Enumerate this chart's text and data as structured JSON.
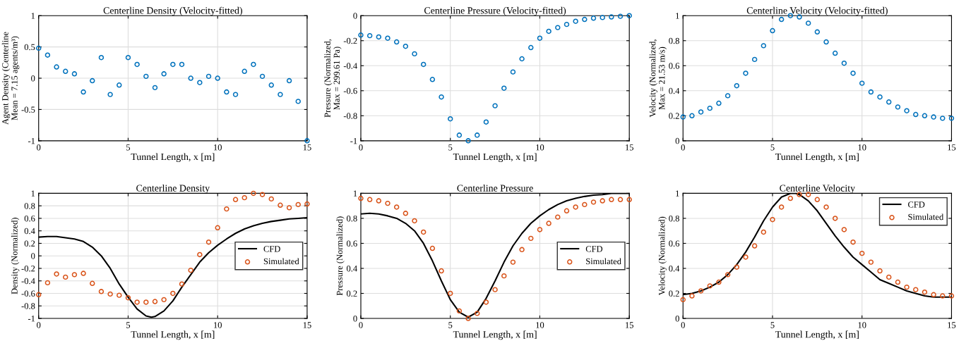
{
  "chart_data": [
    {
      "type": "scatter",
      "title": "Centerline Density (Velocity-fitted)",
      "xlabel": "Tunnel Length, x [m]",
      "ylabel": "Agent Density (Centerline Mean = 7.15 agents/m³)",
      "x": [
        0,
        0.5,
        1,
        1.5,
        2,
        2.5,
        3,
        3.5,
        4,
        4.5,
        5,
        5.5,
        6,
        6.5,
        7,
        7.5,
        8,
        8.5,
        9,
        9.5,
        10,
        10.5,
        11,
        11.5,
        12,
        12.5,
        13,
        13.5,
        14,
        14.5,
        15
      ],
      "series": [
        {
          "color": "#0072bd",
          "values": [
            0.48,
            0.37,
            0.18,
            0.11,
            0.07,
            -0.22,
            -0.04,
            0.33,
            -0.26,
            -0.11,
            0.33,
            0.22,
            0.03,
            -0.15,
            0.07,
            0.22,
            0.22,
            0.0,
            -0.07,
            0.03,
            0.0,
            -0.22,
            -0.26,
            0.11,
            0.22,
            0.03,
            -0.11,
            -0.26,
            -0.04,
            -0.37,
            -1.0
          ]
        }
      ],
      "xlim": [
        0,
        15
      ],
      "xticks": [
        0,
        5,
        10,
        15
      ],
      "ylim": [
        -1,
        1
      ],
      "yticks": [
        -1,
        -0.5,
        0,
        0.5,
        1
      ],
      "grid": true,
      "marker": "circle"
    },
    {
      "type": "scatter",
      "title": "Centerline Pressure (Velocity-fitted)",
      "xlabel": "Tunnel Length, x [m]",
      "ylabel": "Pressure (Normalized, Max = 299.61 Pa)",
      "x": [
        0,
        0.5,
        1,
        1.5,
        2,
        2.5,
        3,
        3.5,
        4,
        4.5,
        5,
        5.5,
        6,
        6.5,
        7,
        7.5,
        8,
        8.5,
        9,
        9.5,
        10,
        10.5,
        11,
        11.5,
        12,
        12.5,
        13,
        13.5,
        14,
        14.5,
        15
      ],
      "series": [
        {
          "color": "#0072bd",
          "values": [
            -0.155,
            -0.16,
            -0.17,
            -0.18,
            -0.21,
            -0.245,
            -0.305,
            -0.39,
            -0.51,
            -0.65,
            -0.825,
            -0.955,
            -1.0,
            -0.955,
            -0.85,
            -0.72,
            -0.58,
            -0.45,
            -0.345,
            -0.255,
            -0.18,
            -0.125,
            -0.095,
            -0.07,
            -0.045,
            -0.03,
            -0.02,
            -0.015,
            -0.01,
            -0.005,
            0.0
          ]
        }
      ],
      "xlim": [
        0,
        15
      ],
      "xticks": [
        0,
        5,
        10,
        15
      ],
      "ylim": [
        -1,
        0
      ],
      "yticks": [
        -1,
        -0.8,
        -0.6,
        -0.4,
        -0.2,
        0
      ],
      "grid": true,
      "marker": "circle"
    },
    {
      "type": "scatter",
      "title": "Centerline Velocity (Velocity-fitted)",
      "xlabel": "Tunnel Length, x [m]",
      "ylabel": "Velocity (Normalized, Max = 21.53 m/s)",
      "x": [
        0,
        0.5,
        1,
        1.5,
        2,
        2.5,
        3,
        3.5,
        4,
        4.5,
        5,
        5.5,
        6,
        6.5,
        7,
        7.5,
        8,
        8.5,
        9,
        9.5,
        10,
        10.5,
        11,
        11.5,
        12,
        12.5,
        13,
        13.5,
        14,
        14.5,
        15
      ],
      "series": [
        {
          "color": "#0072bd",
          "values": [
            0.19,
            0.2,
            0.23,
            0.26,
            0.3,
            0.36,
            0.44,
            0.54,
            0.65,
            0.76,
            0.88,
            0.97,
            1.0,
            0.99,
            0.94,
            0.87,
            0.79,
            0.7,
            0.62,
            0.54,
            0.46,
            0.39,
            0.35,
            0.31,
            0.27,
            0.24,
            0.21,
            0.2,
            0.19,
            0.18,
            0.18
          ]
        }
      ],
      "xlim": [
        0,
        15
      ],
      "xticks": [
        0,
        5,
        10,
        15
      ],
      "ylim": [
        0,
        1
      ],
      "yticks": [
        0,
        0.2,
        0.4,
        0.6,
        0.8,
        1
      ],
      "grid": true,
      "marker": "circle"
    },
    {
      "type": "scatter",
      "title": "Centerline Density",
      "xlabel": "Tunnel Length, x [m]",
      "ylabel": "Density (Normalized)",
      "x": [
        0,
        0.5,
        1,
        1.5,
        2,
        2.5,
        3,
        3.5,
        4,
        4.5,
        5,
        5.5,
        6,
        6.5,
        7,
        7.5,
        8,
        8.5,
        9,
        9.5,
        10,
        10.5,
        11,
        11.5,
        12,
        12.5,
        13,
        13.5,
        14,
        14.5,
        15
      ],
      "series": [
        {
          "name": "CFD",
          "type": "line",
          "marker": "none",
          "color": "#000000",
          "x": [
            0,
            0.5,
            1,
            1.5,
            2,
            2.5,
            3,
            3.5,
            4,
            4.5,
            5,
            5.5,
            6,
            6.3,
            6.5,
            7,
            7.5,
            8,
            8.5,
            9,
            9.5,
            10,
            10.5,
            11,
            11.5,
            12,
            12.5,
            13,
            13.5,
            14,
            14.5,
            15
          ],
          "values": [
            0.3,
            0.31,
            0.31,
            0.29,
            0.27,
            0.23,
            0.14,
            0.0,
            -0.2,
            -0.45,
            -0.66,
            -0.85,
            -0.96,
            -0.98,
            -0.97,
            -0.88,
            -0.72,
            -0.5,
            -0.3,
            -0.1,
            0.05,
            0.17,
            0.27,
            0.36,
            0.43,
            0.48,
            0.52,
            0.55,
            0.57,
            0.59,
            0.6,
            0.61
          ]
        },
        {
          "name": "Simulated",
          "color": "#d95319",
          "values": [
            -0.62,
            -0.43,
            -0.29,
            -0.34,
            -0.3,
            -0.28,
            -0.44,
            -0.57,
            -0.61,
            -0.63,
            -0.67,
            -0.74,
            -0.74,
            -0.73,
            -0.7,
            -0.6,
            -0.45,
            -0.23,
            0.02,
            0.22,
            0.45,
            0.75,
            0.9,
            0.93,
            1.0,
            0.98,
            0.91,
            0.81,
            0.77,
            0.82,
            0.83
          ]
        }
      ],
      "xlim": [
        0,
        15
      ],
      "xticks": [
        0,
        5,
        10,
        15
      ],
      "ylim": [
        -1,
        1
      ],
      "yticks": [
        -1,
        -0.8,
        -0.6,
        -0.4,
        -0.2,
        0,
        0.2,
        0.4,
        0.6,
        0.8,
        1
      ],
      "grid": true,
      "marker": "circle",
      "legend": "center right"
    },
    {
      "type": "scatter",
      "title": "Centerline Pressure",
      "xlabel": "Tunnel Length, x [m]",
      "ylabel": "Pressure (Normalized)",
      "x": [
        0,
        0.5,
        1,
        1.5,
        2,
        2.5,
        3,
        3.5,
        4,
        4.5,
        5,
        5.5,
        6,
        6.5,
        7,
        7.5,
        8,
        8.5,
        9,
        9.5,
        10,
        10.5,
        11,
        11.5,
        12,
        12.5,
        13,
        13.5,
        14,
        14.5,
        15
      ],
      "series": [
        {
          "name": "CFD",
          "type": "line",
          "marker": "none",
          "color": "#000000",
          "x": [
            0,
            0.5,
            1,
            1.5,
            2,
            2.5,
            3,
            3.5,
            4,
            4.5,
            5,
            5.5,
            6,
            6.5,
            7,
            7.5,
            8,
            8.5,
            9,
            9.5,
            10,
            10.5,
            11,
            11.5,
            12,
            12.5,
            13,
            13.5,
            14,
            15
          ],
          "values": [
            0.835,
            0.84,
            0.835,
            0.82,
            0.8,
            0.76,
            0.7,
            0.6,
            0.46,
            0.3,
            0.15,
            0.05,
            0.01,
            0.05,
            0.16,
            0.3,
            0.45,
            0.58,
            0.68,
            0.76,
            0.82,
            0.87,
            0.91,
            0.94,
            0.96,
            0.975,
            0.985,
            0.99,
            1.0,
            1.0
          ]
        },
        {
          "name": "Simulated",
          "color": "#d95319",
          "values": [
            0.96,
            0.95,
            0.94,
            0.92,
            0.89,
            0.84,
            0.78,
            0.69,
            0.56,
            0.38,
            0.2,
            0.06,
            0.0,
            0.04,
            0.13,
            0.23,
            0.34,
            0.45,
            0.55,
            0.64,
            0.71,
            0.76,
            0.81,
            0.86,
            0.89,
            0.91,
            0.93,
            0.94,
            0.95,
            0.95,
            0.95
          ]
        }
      ],
      "xlim": [
        0,
        15
      ],
      "xticks": [
        0,
        5,
        10,
        15
      ],
      "ylim": [
        0,
        1
      ],
      "yticks": [
        0,
        0.2,
        0.4,
        0.6,
        0.8,
        1
      ],
      "grid": true,
      "marker": "circle",
      "legend": "center right"
    },
    {
      "type": "scatter",
      "title": "Centerline Velocity",
      "xlabel": "Tunnel Length, x [m]",
      "ylabel": "Velocity (Normalized)",
      "x": [
        0,
        0.5,
        1,
        1.5,
        2,
        2.5,
        3,
        3.5,
        4,
        4.5,
        5,
        5.5,
        6,
        6.5,
        7,
        7.5,
        8,
        8.5,
        9,
        9.5,
        10,
        10.5,
        11,
        11.5,
        12,
        12.5,
        13,
        13.5,
        14,
        14.5,
        15
      ],
      "series": [
        {
          "name": "CFD",
          "type": "line",
          "marker": "none",
          "color": "#000000",
          "x": [
            0,
            0.5,
            1,
            1.5,
            2,
            2.5,
            3,
            3.5,
            4,
            4.5,
            5,
            5.5,
            6,
            6.3,
            6.5,
            7,
            7.5,
            8,
            8.5,
            9,
            9.5,
            10,
            10.5,
            11,
            11.5,
            12,
            12.5,
            13,
            13.5,
            14,
            14.5,
            15
          ],
          "values": [
            0.19,
            0.2,
            0.22,
            0.25,
            0.29,
            0.35,
            0.43,
            0.53,
            0.65,
            0.78,
            0.89,
            0.97,
            1.0,
            1.0,
            0.99,
            0.94,
            0.86,
            0.76,
            0.66,
            0.57,
            0.49,
            0.43,
            0.37,
            0.31,
            0.28,
            0.25,
            0.22,
            0.2,
            0.18,
            0.17,
            0.17,
            0.17
          ]
        },
        {
          "name": "Simulated",
          "color": "#d95319",
          "values": [
            0.15,
            0.18,
            0.22,
            0.26,
            0.29,
            0.35,
            0.41,
            0.49,
            0.58,
            0.69,
            0.79,
            0.89,
            0.96,
            0.99,
            0.99,
            0.95,
            0.89,
            0.8,
            0.71,
            0.61,
            0.52,
            0.45,
            0.38,
            0.33,
            0.29,
            0.25,
            0.23,
            0.21,
            0.19,
            0.18,
            0.18
          ]
        }
      ],
      "xlim": [
        0,
        15
      ],
      "xticks": [
        0,
        5,
        10,
        15
      ],
      "ylim": [
        0,
        1
      ],
      "yticks": [
        0,
        0.2,
        0.4,
        0.6,
        0.8,
        1
      ],
      "grid": true,
      "marker": "circle",
      "legend": "top right"
    }
  ]
}
